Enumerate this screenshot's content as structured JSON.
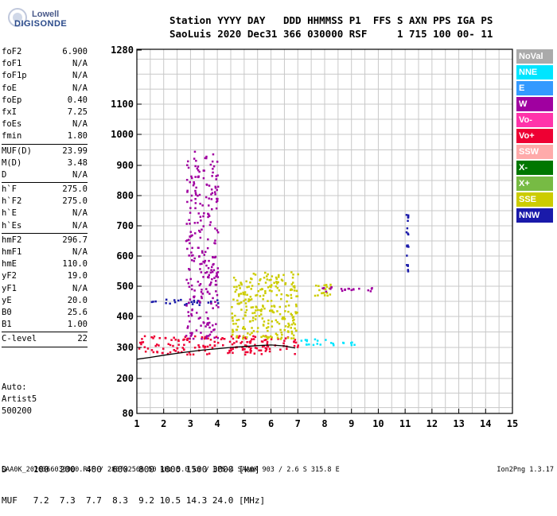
{
  "logo": {
    "line1": "Lowell",
    "line2": "DIGISONDE"
  },
  "header": {
    "line1": "Station YYYY DAY   DDD HHMMSS P1  FFS S AXN PPS IGA PS",
    "line2": "SaoLuis 2020 Dec31 366 030000 RSF     1 715 100 00- 11"
  },
  "params": [
    {
      "label": "foF2",
      "value": "6.900",
      "sep_after": false
    },
    {
      "label": "foF1",
      "value": "N/A",
      "sep_after": false
    },
    {
      "label": "foF1p",
      "value": "N/A",
      "sep_after": false
    },
    {
      "label": "foE",
      "value": "N/A",
      "sep_after": false
    },
    {
      "label": "foEp",
      "value": "0.40",
      "sep_after": false
    },
    {
      "label": "fxI",
      "value": "7.25",
      "sep_after": false
    },
    {
      "label": "foEs",
      "value": "N/A",
      "sep_after": false
    },
    {
      "label": "fmin",
      "value": "1.80",
      "sep_after": true
    },
    {
      "label": "MUF(D)",
      "value": "23.99",
      "sep_after": false
    },
    {
      "label": "M(D)",
      "value": "3.48",
      "sep_after": false
    },
    {
      "label": "D",
      "value": "N/A",
      "sep_after": true
    },
    {
      "label": "h`F",
      "value": "275.0",
      "sep_after": false
    },
    {
      "label": "h`F2",
      "value": "275.0",
      "sep_after": false
    },
    {
      "label": "h`E",
      "value": "N/A",
      "sep_after": false
    },
    {
      "label": "h`Es",
      "value": "N/A",
      "sep_after": true
    },
    {
      "label": "hmF2",
      "value": "296.7",
      "sep_after": false
    },
    {
      "label": "hmF1",
      "value": "N/A",
      "sep_after": false
    },
    {
      "label": "hmE",
      "value": "110.0",
      "sep_after": false
    },
    {
      "label": "yF2",
      "value": "19.0",
      "sep_after": false
    },
    {
      "label": "yF1",
      "value": "N/A",
      "sep_after": false
    },
    {
      "label": "yE",
      "value": "20.0",
      "sep_after": false
    },
    {
      "label": "B0",
      "value": "25.6",
      "sep_after": false
    },
    {
      "label": "B1",
      "value": "1.00",
      "sep_after": true
    },
    {
      "label": "C-level",
      "value": "22",
      "sep_after": true
    }
  ],
  "auto": {
    "line1": "Auto:",
    "line2": "Artist5",
    "line3": "500200"
  },
  "dmuf": {
    "d_line": "D     100  200  400  600  800 1000 1500 3000 [km]",
    "muf_line": "MUF   7.2  7.3  7.7  8.3  9.2 10.5 14.3 24.0 [MHz]"
  },
  "footer": {
    "left": "SAA0K_2020366030000.RSF / 280fx256h 50 kHz 5.0 km / DPS-4 SAA0K 903 / 2.6 S 315.8 E",
    "right": "Ion2Png 1.3.17"
  },
  "legend": [
    {
      "label": "NoVal",
      "color": "#aaaaaa",
      "text": "#ffffff"
    },
    {
      "label": "NNE",
      "color": "#00e5ff",
      "text": "#ffffff"
    },
    {
      "label": "E",
      "color": "#3399ff",
      "text": "#ffffff"
    },
    {
      "label": "W",
      "color": "#a000a0",
      "text": "#ffffff"
    },
    {
      "label": "Vo-",
      "color": "#ff33aa",
      "text": "#ffffff"
    },
    {
      "label": "Vo+",
      "color": "#ee0033",
      "text": "#ffffff"
    },
    {
      "label": "SSW",
      "color": "#ffaaaa",
      "text": "#ffffff"
    },
    {
      "label": "X-",
      "color": "#007700",
      "text": "#ffffff"
    },
    {
      "label": "X+",
      "color": "#77bb44",
      "text": "#ffffff"
    },
    {
      "label": "SSE",
      "color": "#cccc00",
      "text": "#ffffff"
    },
    {
      "label": "NNW",
      "color": "#1a1aaa",
      "text": "#ffffff"
    }
  ],
  "chart_data": {
    "type": "scatter",
    "title": "",
    "xlabel": "",
    "ylabel": "",
    "x_ticks": [
      1,
      2,
      3,
      4,
      5,
      6,
      7,
      8,
      9,
      10,
      11,
      12,
      13,
      14,
      15
    ],
    "y_ticks": [
      80,
      200,
      300,
      400,
      500,
      600,
      700,
      800,
      900,
      1000,
      1100,
      1280
    ],
    "xlim": [
      1,
      15
    ],
    "y_scale": "nonlinear (sqrt-like)",
    "ylim": [
      80,
      1280
    ],
    "grid": true,
    "trace_curve": {
      "x": [
        1.0,
        1.5,
        2.0,
        2.5,
        3.0,
        3.5,
        4.0,
        4.5,
        5.0,
        5.5,
        6.0,
        6.5,
        6.9
      ],
      "y": [
        262,
        268,
        275,
        281,
        287,
        292,
        296,
        300,
        303,
        306,
        308,
        305,
        298
      ]
    },
    "echo_clusters": [
      {
        "mode": "Vo+",
        "x_range": [
          1.0,
          7.0
        ],
        "y_range": [
          280,
          340
        ]
      },
      {
        "mode": "SSE",
        "x_range": [
          4.5,
          7.0
        ],
        "y_range": [
          330,
          550
        ]
      },
      {
        "mode": "SSE",
        "x_range": [
          7.6,
          8.2
        ],
        "y_range": [
          470,
          510
        ]
      },
      {
        "mode": "W",
        "x_range": [
          7.8,
          9.8
        ],
        "y_range": [
          485,
          500
        ]
      },
      {
        "mode": "NNW",
        "x_range": [
          1.5,
          4.2
        ],
        "y_range": [
          440,
          460
        ]
      },
      {
        "mode": "W",
        "x_range": [
          2.8,
          4.0
        ],
        "y_range": [
          330,
          950
        ]
      },
      {
        "mode": "NNE",
        "x_range": [
          7.0,
          9.2
        ],
        "y_range": [
          310,
          330
        ]
      },
      {
        "mode": "NNW",
        "x_range": [
          11.0,
          11.1
        ],
        "y_range": [
          550,
          740
        ]
      }
    ]
  }
}
